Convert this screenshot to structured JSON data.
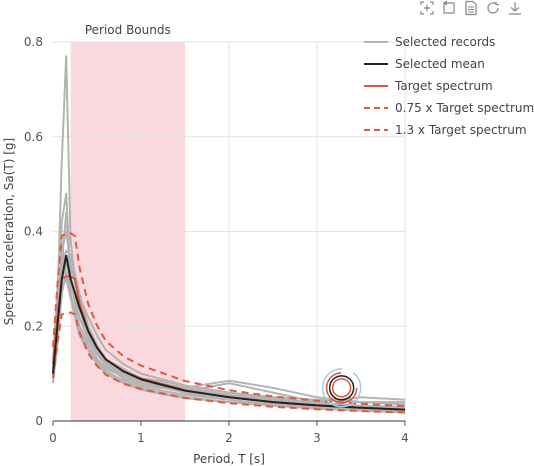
{
  "toolbar": {
    "icons": [
      "zoom-region-icon",
      "zoom-reset-icon",
      "data-view-icon",
      "restore-icon",
      "download-icon"
    ]
  },
  "legend": [
    {
      "label": "Selected records",
      "color": "#b3b3b3",
      "dash": false
    },
    {
      "label": "Selected mean",
      "color": "#222222",
      "dash": false
    },
    {
      "label": "Target spectrum",
      "color": "#d9573a",
      "dash": false
    },
    {
      "label": "0.75 x Target spectrum",
      "color": "#e05a3e",
      "dash": true
    },
    {
      "label": "1.3 x Target spectrum",
      "color": "#e05a3e",
      "dash": true
    }
  ],
  "chart_data": {
    "type": "line",
    "xlabel": "Period, T [s]",
    "ylabel": "Spectral acceleration, Sa(T) [g]",
    "xlim": [
      0,
      4
    ],
    "ylim": [
      0,
      0.8
    ],
    "xticks": [
      "0",
      "1",
      "2",
      "3",
      "4"
    ],
    "yticks": [
      "0",
      "0.2",
      "0.4",
      "0.6",
      "0.8"
    ],
    "grid": true,
    "period_bounds": {
      "label": "Period Bounds",
      "range": [
        0.2,
        1.5
      ],
      "color": "#f9d9de"
    },
    "x": [
      0,
      0.05,
      0.1,
      0.15,
      0.2,
      0.25,
      0.3,
      0.4,
      0.5,
      0.6,
      0.8,
      1.0,
      1.2,
      1.5,
      2.0,
      2.5,
      3.0,
      3.5,
      4.0
    ],
    "target": [
      0.12,
      0.22,
      0.3,
      0.305,
      0.305,
      0.3,
      0.25,
      0.19,
      0.155,
      0.13,
      0.105,
      0.09,
      0.08,
      0.065,
      0.05,
      0.04,
      0.033,
      0.028,
      0.024
    ],
    "mean": [
      0.1,
      0.2,
      0.3,
      0.35,
      0.3,
      0.27,
      0.24,
      0.19,
      0.155,
      0.13,
      0.105,
      0.088,
      0.078,
      0.064,
      0.05,
      0.04,
      0.033,
      0.028,
      0.024
    ],
    "records": [
      [
        0.09,
        0.25,
        0.55,
        0.77,
        0.38,
        0.3,
        0.24,
        0.18,
        0.14,
        0.12,
        0.1,
        0.085,
        0.075,
        0.06,
        0.045,
        0.035,
        0.03,
        0.025,
        0.02
      ],
      [
        0.1,
        0.22,
        0.42,
        0.48,
        0.3,
        0.25,
        0.2,
        0.16,
        0.13,
        0.11,
        0.095,
        0.08,
        0.07,
        0.07,
        0.085,
        0.07,
        0.05,
        0.04,
        0.035
      ],
      [
        0.11,
        0.28,
        0.36,
        0.4,
        0.33,
        0.29,
        0.26,
        0.22,
        0.18,
        0.15,
        0.12,
        0.1,
        0.09,
        0.075,
        0.06,
        0.05,
        0.045,
        0.04,
        0.04
      ],
      [
        0.12,
        0.2,
        0.33,
        0.44,
        0.28,
        0.26,
        0.22,
        0.17,
        0.14,
        0.12,
        0.09,
        0.075,
        0.065,
        0.055,
        0.045,
        0.035,
        0.028,
        0.023,
        0.02
      ],
      [
        0.09,
        0.18,
        0.29,
        0.34,
        0.27,
        0.23,
        0.2,
        0.16,
        0.13,
        0.115,
        0.095,
        0.08,
        0.072,
        0.062,
        0.08,
        0.06,
        0.04,
        0.03,
        0.025
      ],
      [
        0.1,
        0.24,
        0.38,
        0.3,
        0.26,
        0.22,
        0.18,
        0.15,
        0.125,
        0.105,
        0.085,
        0.07,
        0.06,
        0.05,
        0.04,
        0.032,
        0.026,
        0.022,
        0.018
      ],
      [
        0.13,
        0.26,
        0.32,
        0.36,
        0.35,
        0.31,
        0.27,
        0.2,
        0.16,
        0.13,
        0.11,
        0.09,
        0.08,
        0.07,
        0.055,
        0.045,
        0.04,
        0.05,
        0.045
      ],
      [
        0.08,
        0.16,
        0.27,
        0.31,
        0.26,
        0.22,
        0.19,
        0.15,
        0.12,
        0.1,
        0.08,
        0.066,
        0.058,
        0.048,
        0.04,
        0.033,
        0.028,
        0.024,
        0.02
      ],
      [
        0.11,
        0.23,
        0.31,
        0.33,
        0.3,
        0.27,
        0.24,
        0.19,
        0.15,
        0.125,
        0.1,
        0.085,
        0.076,
        0.066,
        0.052,
        0.042,
        0.035,
        0.03,
        0.026
      ],
      [
        0.12,
        0.21,
        0.28,
        0.3,
        0.29,
        0.26,
        0.22,
        0.18,
        0.145,
        0.12,
        0.1,
        0.09,
        0.085,
        0.075,
        0.06,
        0.048,
        0.038,
        0.032,
        0.03
      ]
    ]
  }
}
